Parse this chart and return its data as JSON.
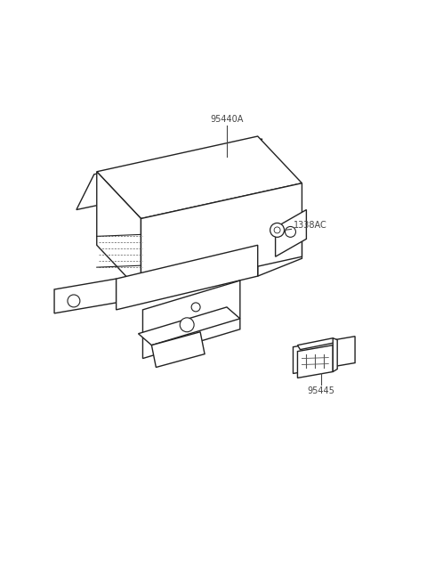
{
  "bg_color": "#ffffff",
  "line_color": "#222222",
  "label_color": "#444444",
  "figsize": [
    4.8,
    6.57
  ],
  "dpi": 100,
  "label_95440A": "95440A",
  "label_1338AC": "1338AC",
  "label_95445": "95445",
  "label_fs": 7.0
}
